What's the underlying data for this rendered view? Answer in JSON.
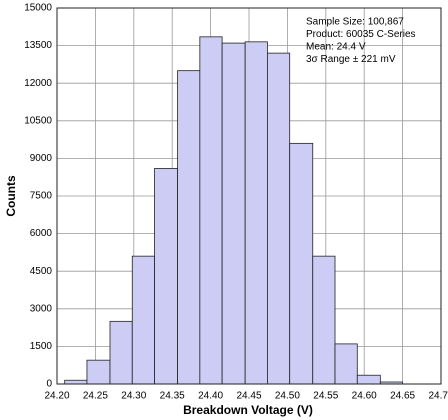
{
  "chart_data": {
    "type": "histogram",
    "xlabel": "Breakdown Voltage (V)",
    "ylabel": "Counts",
    "bins": [
      24.21,
      24.239,
      24.269,
      24.298,
      24.327,
      24.357,
      24.386,
      24.415,
      24.445,
      24.474,
      24.503,
      24.533,
      24.562,
      24.591,
      24.621,
      24.65
    ],
    "counts": [
      150,
      950,
      2500,
      5100,
      8600,
      12500,
      13850,
      13600,
      13650,
      13200,
      9600,
      5100,
      1600,
      350,
      80
    ],
    "color": "#ccccf4",
    "edgecolor": "#222222",
    "xlim": [
      24.2,
      24.7
    ],
    "xticks": [
      {
        "value": 24.2,
        "label": "24.20"
      },
      24.25,
      {
        "value": 24.3,
        "label": "24.30"
      },
      24.35,
      {
        "value": 24.4,
        "label": "24.40"
      },
      24.45,
      {
        "value": 24.5,
        "label": "24.50"
      },
      24.55,
      {
        "value": 24.6,
        "label": "24.60"
      },
      24.65,
      {
        "value": 24.7,
        "label": "24.70"
      }
    ],
    "ylim": [
      0,
      15000
    ],
    "yticks": [
      0,
      1500,
      3000,
      4500,
      6000,
      7500,
      9000,
      10500,
      12000,
      13500,
      15000
    ],
    "grid": true,
    "annotations": [
      "Sample Size: 100,867",
      "Product: 60035 C-Series",
      "Mean: 24.4 V",
      "3σ Range ± 221 mV"
    ]
  }
}
